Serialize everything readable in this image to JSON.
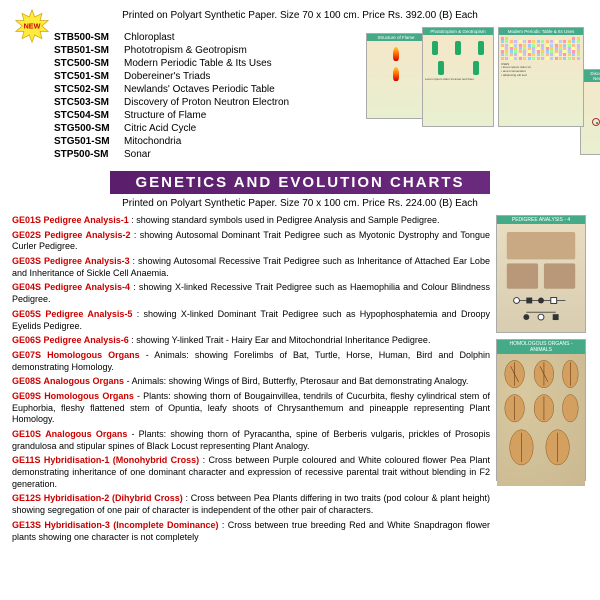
{
  "newLabel": "NEW",
  "headerLine": "Printed on Polyart Synthetic Paper.    Size 70 x 100 cm.    Price Rs. 392.00 (B) Each",
  "codes": [
    {
      "c": "STB500-SM",
      "n": "Chloroplast"
    },
    {
      "c": "STB501-SM",
      "n": "Phototropism & Geotropism"
    },
    {
      "c": "STC500-SM",
      "n": "Modern Periodic Table & Its Uses"
    },
    {
      "c": "STC501-SM",
      "n": "Dobereiner's Triads"
    },
    {
      "c": "STC502-SM",
      "n": "Newlands' Octaves Periodic Table"
    },
    {
      "c": "STC503-SM",
      "n": "Discovery of Proton Neutron Electron"
    },
    {
      "c": "STC504-SM",
      "n": "Structure of Flame"
    },
    {
      "c": "STG500-SM",
      "n": "Citric Acid Cycle"
    },
    {
      "c": "STG501-SM",
      "n": "Mitochondria"
    },
    {
      "c": "STP500-SM",
      "n": "Sonar"
    }
  ],
  "banner": "GENETICS  AND  EVOLUTION  CHARTS",
  "subtitle": "Printed on Polyart Synthetic Paper.    Size 70 x 100 cm.    Price Rs. 224.00 (B) Each",
  "entries": [
    {
      "c": "GE01S",
      "t": "Pedigree Analysis-1",
      "d": ": showing standard symbols used in Pedigree Analysis and Sample Pedigree."
    },
    {
      "c": "GE02S",
      "t": "Pedigree Analysis-2",
      "d": ": showing Autosomal Dominant Trait Pedigree such as Myotonic Dystrophy and Tongue Curler Pedigree."
    },
    {
      "c": "GE03S",
      "t": "Pedigree Analysis-3",
      "d": ": showing Autosomal Recessive Trait Pedigree such as Inheritance of Attached Ear Lobe and Inheritance of Sickle Cell Anaemia."
    },
    {
      "c": "GE04S",
      "t": "Pedigree Analysis-4",
      "d": ": showing X-linked Recessive Trait Pedigree such as Haemophilia and Colour Blindness Pedigree."
    },
    {
      "c": "GE05S",
      "t": "Pedigree Analysis-5",
      "d": ": showing X-linked Dominant Trait Pedigree such as Hypophosphatemia and Droopy Eyelids Pedigree."
    },
    {
      "c": "GE06S",
      "t": "Pedigree Analysis-6",
      "d": ": showing Y-linked Trait - Hairy Ear and Mitochondrial Inheritance Pedigree."
    },
    {
      "c": "GE07S",
      "t": "Homologous Organs",
      "d": "- Animals: showing Forelimbs of Bat, Turtle, Horse, Human, Bird and Dolphin demonstrating Homology."
    },
    {
      "c": "GE08S",
      "t": "Analogous Organs",
      "d": "- Animals: showing Wings of Bird, Butterfly, Pterosaur and Bat demonstrating Analogy."
    },
    {
      "c": "GE09S",
      "t": "Homologous Organs",
      "d": "- Plants: showing thorn of Bougainvillea, tendrils of Cucurbita, fleshy cylindrical stem of Euphorbia, fleshy flattened stem of Opuntia, leafy shoots of Chrysanthemum and pineapple representing Plant Homology."
    },
    {
      "c": "GE10S",
      "t": "Analogous Organs",
      "d": "- Plants: showing thorn of Pyracantha, spine of Berberis vulgaris, prickles of Prosopis grandulosa and stipular spines of Black Locust representing Plant Analogy."
    },
    {
      "c": "GE11S",
      "t": "Hybridisation-1 (Monohybrid Cross)",
      "d": ": Cross between Purple coloured  and White coloured flower Pea Plant demonstrating inheritance of one dominant character and expression of recessive parental trait without blending in F2 generation."
    },
    {
      "c": "GE12S",
      "t": "Hybridisation-2 (Dihybrid Cross)",
      "d": ": Cross between Pea Plants differing in two traits (pod colour & plant height) showing segregation of one pair of character is independent of the other pair of characters."
    },
    {
      "c": "GE13S",
      "t": "Hybridisation-3 (Incomplete Dominance)",
      "d": ": Cross between true breeding Red and White Snapdragon flower plants showing one character is not completely"
    }
  ],
  "thumbTitles": {
    "phototropism": "Phototropism & Geotropism",
    "periodic": "Modern Periodic Table & Its Uses",
    "flame": "Structure of Flame",
    "proton": "Discovery of Proton Neutron Electron",
    "pedigree": "PEDIGREE ANALYSIS - 4",
    "homologous": "HOMOLOGOUS ORGANS - ANIMALS"
  },
  "ptColors": [
    "#f9a",
    "#fc6",
    "#9cf",
    "#9f9",
    "#fb8",
    "#cbe",
    "#ff9",
    "#bce"
  ]
}
